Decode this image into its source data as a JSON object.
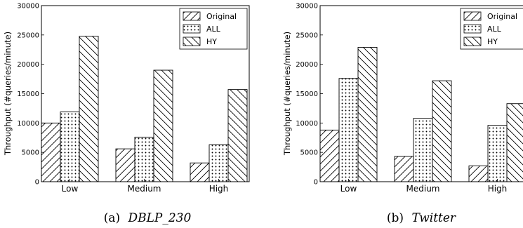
{
  "chart_data": [
    {
      "type": "bar",
      "caption_label": "(a)",
      "caption_name": "DBLP_230",
      "ylabel": "Throughput (#queries/minute)",
      "categories": [
        "Low",
        "Medium",
        "High"
      ],
      "ylim": [
        0,
        30000
      ],
      "yticks": [
        "0",
        "5000",
        "10000",
        "15000",
        "20000",
        "25000",
        "30000"
      ],
      "legend_position": "top-right",
      "series": [
        {
          "name": "Original",
          "pattern": "diagonal-forward",
          "values": [
            10000,
            5600,
            3200
          ]
        },
        {
          "name": "ALL",
          "pattern": "dots",
          "values": [
            11900,
            7600,
            6300
          ]
        },
        {
          "name": "HY",
          "pattern": "diagonal-backward",
          "values": [
            24800,
            19000,
            15700
          ]
        }
      ]
    },
    {
      "type": "bar",
      "caption_label": "(b)",
      "caption_name": "Twitter",
      "ylabel": "Throughput (#queries/minute)",
      "categories": [
        "Low",
        "Medium",
        "High"
      ],
      "ylim": [
        0,
        30000
      ],
      "yticks": [
        "0",
        "5000",
        "10000",
        "15000",
        "20000",
        "25000",
        "30000"
      ],
      "legend_position": "top-right",
      "series": [
        {
          "name": "Original",
          "pattern": "diagonal-forward",
          "values": [
            8800,
            4300,
            2700
          ]
        },
        {
          "name": "ALL",
          "pattern": "dots",
          "values": [
            17600,
            10800,
            9600
          ]
        },
        {
          "name": "HY",
          "pattern": "diagonal-backward",
          "values": [
            22900,
            17200,
            13300
          ]
        }
      ]
    }
  ]
}
